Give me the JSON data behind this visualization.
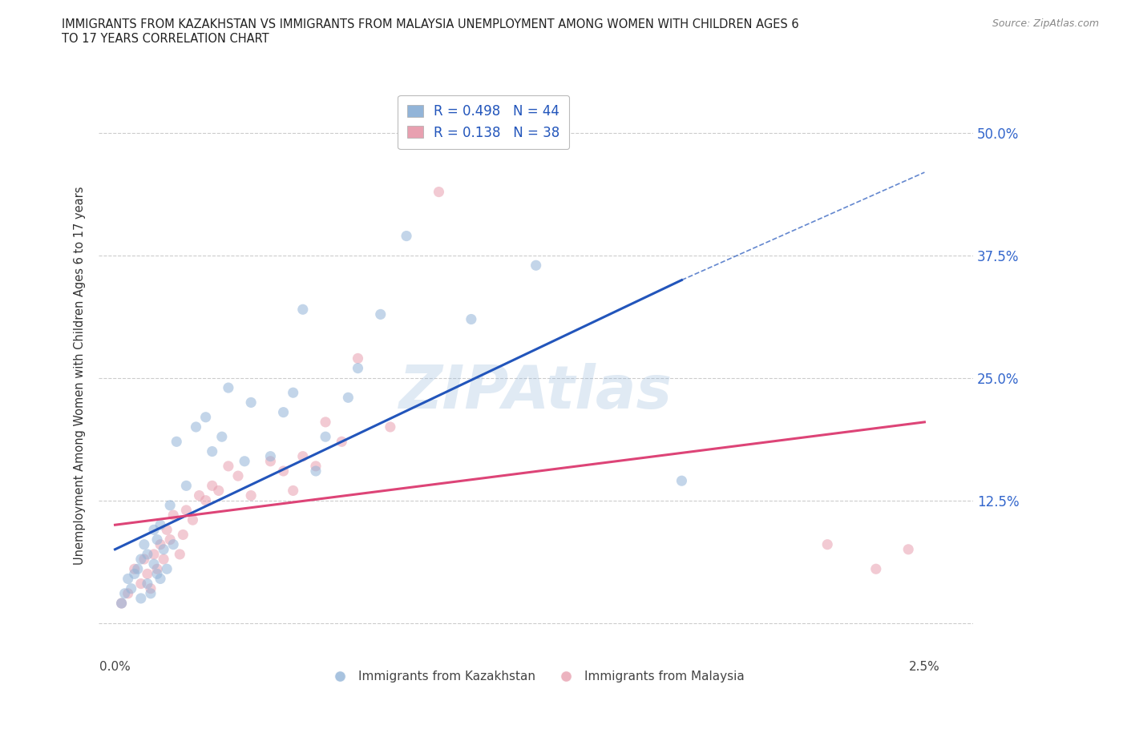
{
  "title": "IMMIGRANTS FROM KAZAKHSTAN VS IMMIGRANTS FROM MALAYSIA UNEMPLOYMENT AMONG WOMEN WITH CHILDREN AGES 6\nTO 17 YEARS CORRELATION CHART",
  "source_text": "Source: ZipAtlas.com",
  "ylabel": "Unemployment Among Women with Children Ages 6 to 17 years",
  "watermark": "ZIPAtlas",
  "blue_R": 0.498,
  "blue_N": 44,
  "pink_R": 0.138,
  "pink_N": 38,
  "blue_color": "#92b4d8",
  "pink_color": "#e8a0b0",
  "blue_line_color": "#2255bb",
  "pink_line_color": "#dd4477",
  "legend_blue_label": "R = 0.498   N = 44",
  "legend_pink_label": "R = 0.138   N = 38",
  "series_blue_label": "Immigrants from Kazakhstan",
  "series_pink_label": "Immigrants from Malaysia",
  "xlim": [
    -0.05,
    2.65
  ],
  "ylim": [
    -3.5,
    54.0
  ],
  "blue_line_x0": 0.0,
  "blue_line_y0": 7.5,
  "blue_line_x1": 1.75,
  "blue_line_y1": 35.0,
  "blue_line_xdash": 2.5,
  "blue_line_ydash": 46.0,
  "pink_line_x0": 0.0,
  "pink_line_y0": 10.0,
  "pink_line_x1": 2.5,
  "pink_line_y1": 20.5,
  "blue_scatter_x": [
    0.02,
    0.03,
    0.04,
    0.05,
    0.06,
    0.07,
    0.08,
    0.08,
    0.09,
    0.1,
    0.1,
    0.11,
    0.12,
    0.12,
    0.13,
    0.13,
    0.14,
    0.14,
    0.15,
    0.16,
    0.17,
    0.18,
    0.19,
    0.22,
    0.25,
    0.28,
    0.3,
    0.33,
    0.35,
    0.4,
    0.42,
    0.48,
    0.52,
    0.55,
    0.58,
    0.62,
    0.65,
    0.72,
    0.75,
    0.82,
    0.9,
    1.1,
    1.3,
    1.75
  ],
  "blue_scatter_y": [
    2.0,
    3.0,
    4.5,
    3.5,
    5.0,
    5.5,
    2.5,
    6.5,
    8.0,
    4.0,
    7.0,
    3.0,
    6.0,
    9.5,
    5.0,
    8.5,
    4.5,
    10.0,
    7.5,
    5.5,
    12.0,
    8.0,
    18.5,
    14.0,
    20.0,
    21.0,
    17.5,
    19.0,
    24.0,
    16.5,
    22.5,
    17.0,
    21.5,
    23.5,
    32.0,
    15.5,
    19.0,
    23.0,
    26.0,
    31.5,
    39.5,
    31.0,
    36.5,
    14.5
  ],
  "pink_scatter_x": [
    0.02,
    0.04,
    0.06,
    0.08,
    0.09,
    0.1,
    0.11,
    0.12,
    0.13,
    0.14,
    0.15,
    0.16,
    0.17,
    0.18,
    0.2,
    0.21,
    0.22,
    0.24,
    0.26,
    0.28,
    0.3,
    0.32,
    0.35,
    0.38,
    0.42,
    0.48,
    0.52,
    0.55,
    0.58,
    0.62,
    0.65,
    0.7,
    0.75,
    0.85,
    1.0,
    2.2,
    2.35,
    2.45
  ],
  "pink_scatter_y": [
    2.0,
    3.0,
    5.5,
    4.0,
    6.5,
    5.0,
    3.5,
    7.0,
    5.5,
    8.0,
    6.5,
    9.5,
    8.5,
    11.0,
    7.0,
    9.0,
    11.5,
    10.5,
    13.0,
    12.5,
    14.0,
    13.5,
    16.0,
    15.0,
    13.0,
    16.5,
    15.5,
    13.5,
    17.0,
    16.0,
    20.5,
    18.5,
    27.0,
    20.0,
    44.0,
    8.0,
    5.5,
    7.5
  ],
  "grid_color": "#cccccc",
  "background_color": "#ffffff",
  "scatter_alpha": 0.55,
  "scatter_size": 90
}
